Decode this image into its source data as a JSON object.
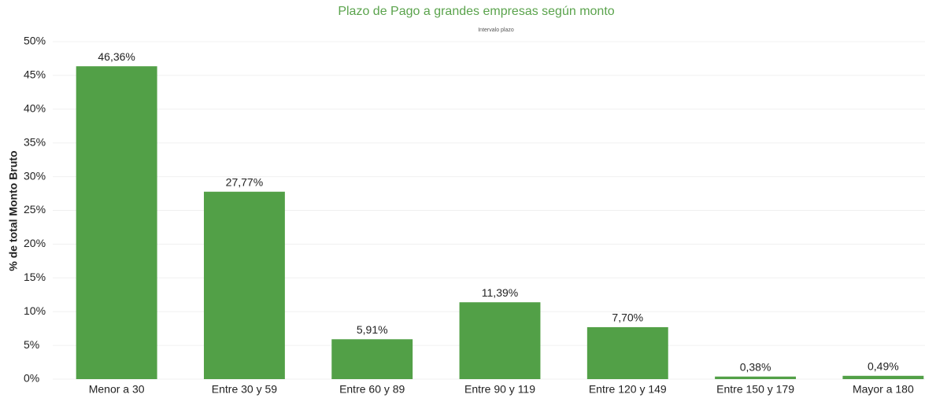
{
  "chart_data": {
    "type": "bar",
    "title": "Plazo de Pago a grandes empresas según monto",
    "subtitle": "Intervalo plazo",
    "y_label": "% de total Monto Bruto",
    "categories": [
      "Menor a 30",
      "Entre 30 y 59",
      "Entre 60 y 89",
      "Entre 90 y 119",
      "Entre 120 y 149",
      "Entre 150 y 179",
      "Mayor a 180"
    ],
    "values": [
      46.36,
      27.77,
      5.91,
      11.39,
      7.7,
      0.38,
      0.49
    ],
    "value_labels": [
      "46,36%",
      "27,77%",
      "5,91%",
      "11,39%",
      "7,70%",
      "0,38%",
      "0,49%"
    ],
    "color": "#52a047",
    "ylim": [
      0,
      50
    ],
    "yticks": [
      {
        "value": 0,
        "label": "0%"
      },
      {
        "value": 5,
        "label": "5%"
      },
      {
        "value": 10,
        "label": "10%"
      },
      {
        "value": 15,
        "label": "15%"
      },
      {
        "value": 20,
        "label": "20%"
      },
      {
        "value": 25,
        "label": "25%"
      },
      {
        "value": 30,
        "label": "30%"
      },
      {
        "value": 35,
        "label": "35%"
      },
      {
        "value": 40,
        "label": "40%"
      },
      {
        "value": 45,
        "label": "45%"
      },
      {
        "value": 50,
        "label": "50%"
      }
    ],
    "grid": true
  }
}
